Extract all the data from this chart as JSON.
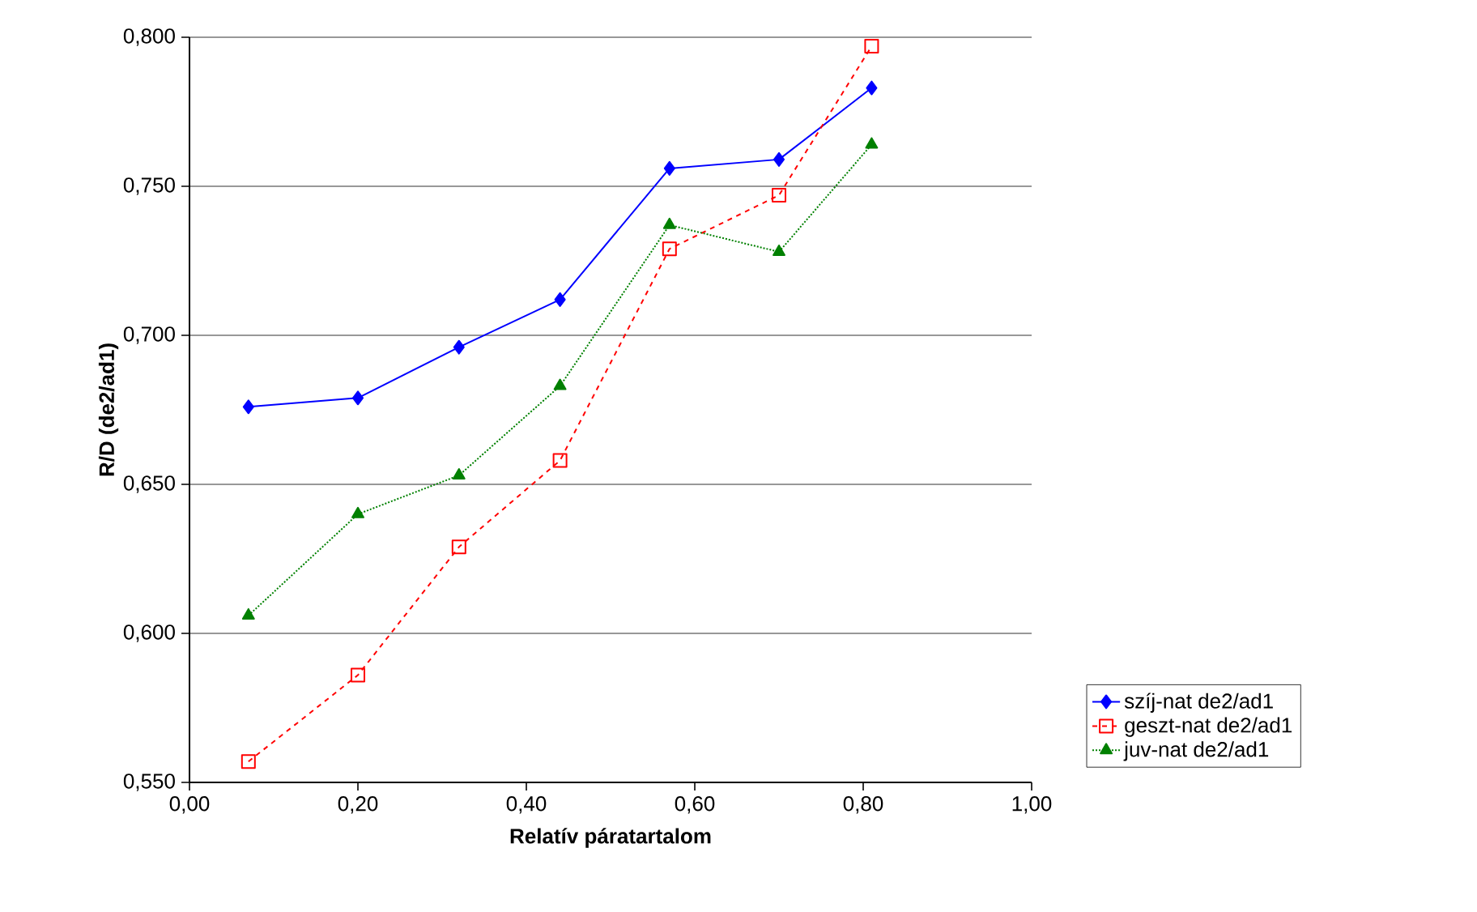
{
  "chart_data": {
    "type": "line",
    "xlabel": "Relatív páratartalom",
    "ylabel": "R/D (de2/ad1)",
    "x": [
      0.07,
      0.2,
      0.32,
      0.44,
      0.57,
      0.7,
      0.81
    ],
    "series": [
      {
        "name": "szíj-nat de2/ad1",
        "color": "#0000ff",
        "marker": "diamond",
        "line_style": "solid",
        "values": [
          0.676,
          0.679,
          0.696,
          0.712,
          0.756,
          0.759,
          0.783
        ]
      },
      {
        "name": "geszt-nat de2/ad1",
        "color": "#ff0000",
        "marker": "square",
        "line_style": "dashed",
        "values": [
          0.557,
          0.586,
          0.629,
          0.658,
          0.729,
          0.747,
          0.797
        ]
      },
      {
        "name": "juv-nat de2/ad1",
        "color": "#008000",
        "marker": "triangle",
        "line_style": "dotted",
        "values": [
          0.606,
          0.64,
          0.653,
          0.683,
          0.737,
          0.728,
          0.764
        ]
      }
    ],
    "xlim": [
      0,
      1
    ],
    "ylim": [
      0.55,
      0.8
    ],
    "xticks": [
      {
        "value": 0,
        "label": "0,00"
      },
      {
        "value": 0.2,
        "label": "0,20"
      },
      {
        "value": 0.4,
        "label": "0,40"
      },
      {
        "value": 0.6,
        "label": "0,60"
      },
      {
        "value": 0.8,
        "label": "0,80"
      },
      {
        "value": 1,
        "label": "1,00"
      }
    ],
    "yticks": [
      {
        "value": 0.55,
        "label": "0,550"
      },
      {
        "value": 0.6,
        "label": "0,600"
      },
      {
        "value": 0.65,
        "label": "0,650"
      },
      {
        "value": 0.7,
        "label": "0,700"
      },
      {
        "value": 0.75,
        "label": "0,750"
      },
      {
        "value": 0.8,
        "label": "0,800"
      }
    ],
    "grid": "y",
    "legend": "right"
  }
}
